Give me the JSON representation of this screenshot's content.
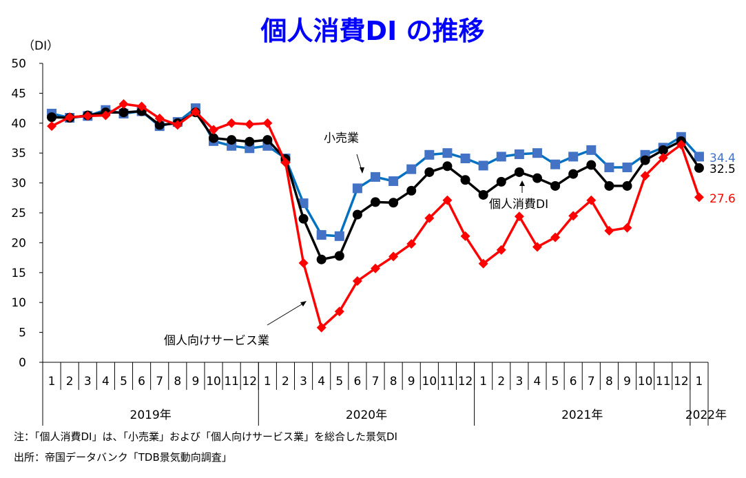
{
  "chart_data": {
    "type": "line",
    "title": "個人消費DI の推移",
    "ylabel": "（DI）",
    "ylim": [
      0,
      50
    ],
    "yticks": [
      0,
      5,
      10,
      15,
      20,
      25,
      30,
      35,
      40,
      45,
      50
    ],
    "months": [
      "1",
      "2",
      "3",
      "4",
      "5",
      "6",
      "7",
      "8",
      "9",
      "10",
      "11",
      "12",
      "1",
      "2",
      "3",
      "4",
      "5",
      "6",
      "7",
      "8",
      "9",
      "10",
      "11",
      "12",
      "1",
      "2",
      "3",
      "4",
      "5",
      "6",
      "7",
      "8",
      "9",
      "10",
      "11",
      "12",
      "1"
    ],
    "years": [
      {
        "label": "2019年",
        "months": 12
      },
      {
        "label": "2020年",
        "months": 12
      },
      {
        "label": "2021年",
        "months": 12
      },
      {
        "label": "2022年",
        "months": 1
      }
    ],
    "grid": false,
    "series": [
      {
        "name": "小売業",
        "color": "#4472c4",
        "line_color": "#0070c0",
        "marker": "square",
        "values": [
          41.6,
          40.9,
          41.2,
          42.2,
          41.6,
          42.0,
          39.5,
          40.2,
          42.5,
          37.0,
          36.2,
          35.8,
          36.2,
          34.1,
          26.6,
          21.3,
          21.1,
          29.1,
          31.0,
          30.3,
          32.3,
          34.7,
          35.0,
          34.1,
          32.9,
          34.4,
          34.8,
          35.0,
          33.1,
          34.4,
          35.5,
          32.6,
          32.6,
          34.7,
          35.9,
          37.7,
          34.4
        ],
        "end_label": "34.4"
      },
      {
        "name": "個人消費DI",
        "color": "#000000",
        "line_color": "#000000",
        "marker": "circle",
        "values": [
          41.0,
          40.9,
          41.3,
          41.8,
          41.8,
          42.0,
          39.7,
          40.0,
          41.8,
          37.5,
          37.2,
          36.9,
          37.2,
          34.0,
          24.0,
          17.2,
          17.8,
          24.7,
          26.8,
          26.7,
          28.7,
          31.8,
          32.8,
          30.5,
          28.0,
          30.2,
          31.8,
          30.8,
          29.5,
          31.5,
          33.0,
          29.5,
          29.5,
          33.8,
          35.5,
          37.0,
          32.5
        ],
        "end_label": "32.5"
      },
      {
        "name": "個人向けサービス業",
        "color": "#ff0000",
        "line_color": "#ff0000",
        "marker": "diamond",
        "values": [
          39.5,
          41.0,
          41.2,
          41.3,
          43.2,
          42.8,
          40.8,
          39.7,
          41.9,
          38.9,
          40.0,
          39.8,
          40.0,
          33.4,
          16.6,
          5.8,
          8.5,
          13.6,
          15.7,
          17.7,
          19.8,
          24.1,
          27.1,
          21.1,
          16.5,
          18.8,
          24.4,
          19.3,
          20.9,
          24.5,
          27.1,
          22.0,
          22.5,
          31.2,
          34.2,
          36.4,
          27.6
        ],
        "end_label": "27.6"
      }
    ],
    "notes": [
      "注：「個人消費DI」は、「小売業」および「個人向けサービス業」を総合した景気DI",
      "出所：帝国データバンク「TDB景気動向調査」"
    ]
  }
}
